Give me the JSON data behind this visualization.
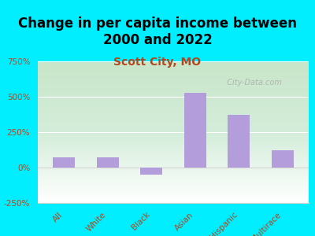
{
  "title": "Change in per capita income between\n2000 and 2022",
  "subtitle": "Scott City, MO",
  "categories": [
    "All",
    "White",
    "Black",
    "Asian",
    "Hispanic",
    "Multirace"
  ],
  "values": [
    75,
    75,
    -50,
    530,
    375,
    125
  ],
  "bar_color": "#b39ddb",
  "title_fontsize": 12,
  "subtitle_fontsize": 10,
  "subtitle_color": "#b5451b",
  "tick_color": "#b5451b",
  "ytick_color": "#b5451b",
  "background_outer": "#00eeff",
  "ylim": [
    -250,
    750
  ],
  "yticks": [
    -250,
    0,
    250,
    500,
    750
  ],
  "ytick_labels": [
    "-250%",
    "0%",
    "250%",
    "500%",
    "750%"
  ],
  "watermark": "  City-Data.com"
}
